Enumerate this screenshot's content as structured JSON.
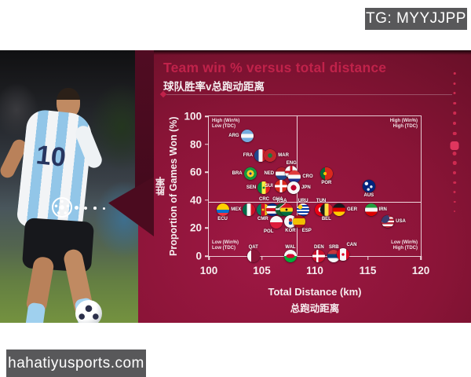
{
  "badges": {
    "telegram": "TG: MYYJJPP",
    "website": "hahatiyusports.com"
  },
  "header": {
    "title": "Team win % versus total distance",
    "subtitle_zh": "球队胜率v总跑动距离"
  },
  "colors": {
    "card_bright": "#9e1a45",
    "card_dark": "#420a1c",
    "title_red": "#c0224a",
    "badge_gray": "#58585a",
    "dot_red": "#cf2a50"
  },
  "chart_data": {
    "type": "scatter",
    "title": "Team win % versus total distance",
    "title_zh": "球队胜率v总跑动距离",
    "xlabel": "Total Distance (km)",
    "xlabel_zh": "总跑动距离",
    "ylabel": "Proportion of Games Won (%)",
    "ylabel_zh": "胜率",
    "xlim": [
      100,
      120
    ],
    "ylim": [
      0,
      100
    ],
    "x_ticks": [
      100,
      105,
      110,
      115,
      120
    ],
    "y_ticks": [
      0,
      20,
      40,
      60,
      80,
      100
    ],
    "grid": false,
    "quadrant_divider": {
      "x_km": 108.3,
      "win_pct": 39
    },
    "quadrants": {
      "top_left": [
        "High (Win%)",
        "Low (TDC)"
      ],
      "top_right": [
        "High (Win%)",
        "High (TDC)"
      ],
      "bottom_left": [
        "Low (Win%)",
        "Low (TDC)"
      ],
      "bottom_right": [
        "Low (Win%)",
        "High (TDC)"
      ]
    },
    "points": [
      {
        "code": "ARG",
        "x": 103.6,
        "win_pct": 86,
        "label_pos": "left"
      },
      {
        "code": "FRA",
        "x": 104.9,
        "win_pct": 72,
        "label_pos": "left"
      },
      {
        "code": "MAR",
        "x": 105.8,
        "win_pct": 72,
        "label_pos": "right"
      },
      {
        "code": "BRA",
        "x": 103.9,
        "win_pct": 59,
        "label_pos": "left"
      },
      {
        "code": "NED",
        "x": 106.9,
        "win_pct": 59,
        "label_pos": "left"
      },
      {
        "code": "ENG",
        "x": 107.8,
        "win_pct": 60,
        "label_pos": "above"
      },
      {
        "code": "CRO",
        "x": 108.1,
        "win_pct": 57,
        "label_pos": "right"
      },
      {
        "code": "POR",
        "x": 111.1,
        "win_pct": 59,
        "label_pos": "below"
      },
      {
        "code": "SEN",
        "x": 105.2,
        "win_pct": 49,
        "label_pos": "left"
      },
      {
        "code": "SUI",
        "x": 106.8,
        "win_pct": 50,
        "label_pos": "left"
      },
      {
        "code": "JPN",
        "x": 108.0,
        "win_pct": 49,
        "label_pos": "right"
      },
      {
        "code": "AUS",
        "x": 115.1,
        "win_pct": 50,
        "label_pos": "below"
      },
      {
        "code": "ECU",
        "x": 101.3,
        "win_pct": 33,
        "label_pos": "below"
      },
      {
        "code": "MEX",
        "x": 103.8,
        "win_pct": 33,
        "label_pos": "left"
      },
      {
        "code": "CMR",
        "x": 105.1,
        "win_pct": 33,
        "label_pos": "below"
      },
      {
        "code": "CRC",
        "x": 106.0,
        "win_pct": 33,
        "label_pos": "above-left"
      },
      {
        "code": "KSA",
        "x": 106.9,
        "win_pct": 33,
        "label_pos": "above"
      },
      {
        "code": "GHA",
        "x": 107.3,
        "win_pct": 33,
        "label_pos": "above-left",
        "leader": true
      },
      {
        "code": "URU",
        "x": 108.9,
        "win_pct": 33,
        "label_pos": "above"
      },
      {
        "code": "TUN",
        "x": 110.6,
        "win_pct": 33,
        "label_pos": "above"
      },
      {
        "code": "BEL",
        "x": 111.1,
        "win_pct": 33,
        "label_pos": "below"
      },
      {
        "code": "GER",
        "x": 112.3,
        "win_pct": 33,
        "label_pos": "right"
      },
      {
        "code": "IRN",
        "x": 115.3,
        "win_pct": 33,
        "label_pos": "right"
      },
      {
        "code": "POL",
        "x": 106.4,
        "win_pct": 24,
        "label_pos": "below-left"
      },
      {
        "code": "KOR",
        "x": 107.7,
        "win_pct": 25,
        "label_pos": "below"
      },
      {
        "code": "ESP",
        "x": 108.5,
        "win_pct": 25,
        "label_pos": "below-right"
      },
      {
        "code": "USA",
        "x": 116.9,
        "win_pct": 25,
        "label_pos": "right"
      },
      {
        "code": "QAT",
        "x": 104.2,
        "win_pct": 0,
        "label_pos": "above"
      },
      {
        "code": "WAL",
        "x": 107.7,
        "win_pct": 0,
        "label_pos": "above"
      },
      {
        "code": "DEN",
        "x": 110.4,
        "win_pct": 0,
        "label_pos": "above"
      },
      {
        "code": "SRB",
        "x": 111.8,
        "win_pct": 0,
        "label_pos": "above"
      },
      {
        "code": "CAN",
        "x": 112.7,
        "win_pct": 1,
        "label_pos": "above-right"
      }
    ]
  }
}
